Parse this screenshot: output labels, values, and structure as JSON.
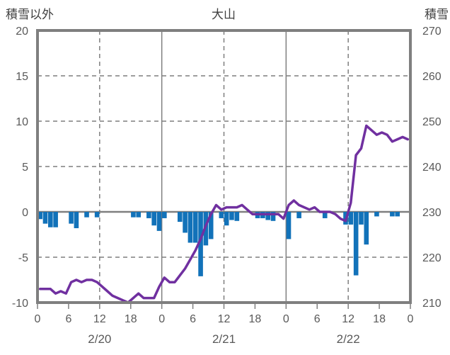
{
  "chart": {
    "title": "大山",
    "left_axis_title": "積雪以外",
    "right_axis_title": "積雪"
  },
  "colors": {
    "background": "#ffffff",
    "frame": "#7f7f7f",
    "bar": "#1272b9",
    "line": "#7030a0",
    "tick_text": "#595959",
    "title_text": "#404040"
  },
  "chart_data": {
    "type": "bar+line",
    "title": "大山",
    "legend": "none",
    "x": {
      "unit": "hour",
      "range_hours": [
        0,
        72
      ],
      "tick_hours": [
        0,
        6,
        12,
        18,
        24,
        30,
        36,
        42,
        48,
        54,
        60,
        66,
        72
      ],
      "tick_labels": [
        "0",
        "6",
        "12",
        "18",
        "0",
        "6",
        "12",
        "18",
        "0",
        "6",
        "12",
        "18",
        "0"
      ],
      "solid_grid_hours": [
        24,
        48
      ],
      "dashed_grid_hours": [
        12,
        36,
        60
      ],
      "day_labels": [
        {
          "label": "2/20",
          "center_hour": 12
        },
        {
          "label": "2/21",
          "center_hour": 36
        },
        {
          "label": "2/22",
          "center_hour": 60
        }
      ]
    },
    "left_axis": {
      "title": "積雪以外",
      "min": -10,
      "max": 20,
      "ticks": [
        20,
        15,
        10,
        5,
        0,
        -5,
        -10
      ]
    },
    "right_axis": {
      "title": "積雪",
      "min": 210,
      "max": 270,
      "ticks": [
        270,
        260,
        250,
        240,
        230,
        220,
        210
      ]
    },
    "grid": {
      "color": "#7f7f7f",
      "zero_line_left_value": 0,
      "horizontal_dashed_left_values": [
        15,
        10,
        5,
        -5
      ]
    },
    "series": [
      {
        "name": "積雪以外",
        "type": "bar",
        "axis": "left",
        "color": "#1272b9",
        "values": [
          -0.8,
          -1.3,
          -1.7,
          -1.7,
          0,
          0,
          -1.3,
          -1.8,
          0,
          -0.6,
          0,
          -0.6,
          0,
          0,
          0,
          0,
          0,
          0,
          -0.6,
          -0.6,
          0,
          -0.7,
          -1.5,
          -2.1,
          -0.7,
          0,
          0,
          -1.1,
          -2.3,
          -3.4,
          -3.4,
          -7.1,
          -3.7,
          -3.0,
          0,
          -0.7,
          -1.5,
          -0.9,
          -1.0,
          0,
          0,
          0,
          -0.7,
          -0.7,
          -0.9,
          -1.0,
          0,
          0,
          -3.0,
          0,
          -0.7,
          0,
          0,
          0,
          0,
          -0.7,
          0,
          0,
          0,
          -1.4,
          -1.4,
          -7.0,
          -1.4,
          -3.6,
          0,
          -0.5,
          0,
          0,
          -0.5,
          -0.5,
          0,
          0
        ]
      },
      {
        "name": "積雪",
        "type": "line",
        "axis": "right",
        "color": "#7030a0",
        "values": [
          213,
          213,
          213,
          212,
          212.5,
          212,
          214.5,
          215,
          214.5,
          215,
          215,
          214.5,
          213.5,
          212.5,
          211.5,
          211,
          210.5,
          210,
          211,
          212,
          211,
          211,
          211,
          213.5,
          215.5,
          214.5,
          214.5,
          216,
          217.5,
          219.5,
          221.5,
          224,
          227,
          229.5,
          231.5,
          230.5,
          231,
          231,
          231,
          231.5,
          230.5,
          229.5,
          229.5,
          229.5,
          229.5,
          229.5,
          229.5,
          228.5,
          231.5,
          232.5,
          231.5,
          231,
          230.5,
          231,
          230,
          230,
          230,
          229.5,
          228.5,
          228,
          232,
          242.5,
          244,
          249,
          248,
          247,
          247.5,
          247,
          245.5,
          246,
          246.5,
          246
        ]
      }
    ]
  }
}
